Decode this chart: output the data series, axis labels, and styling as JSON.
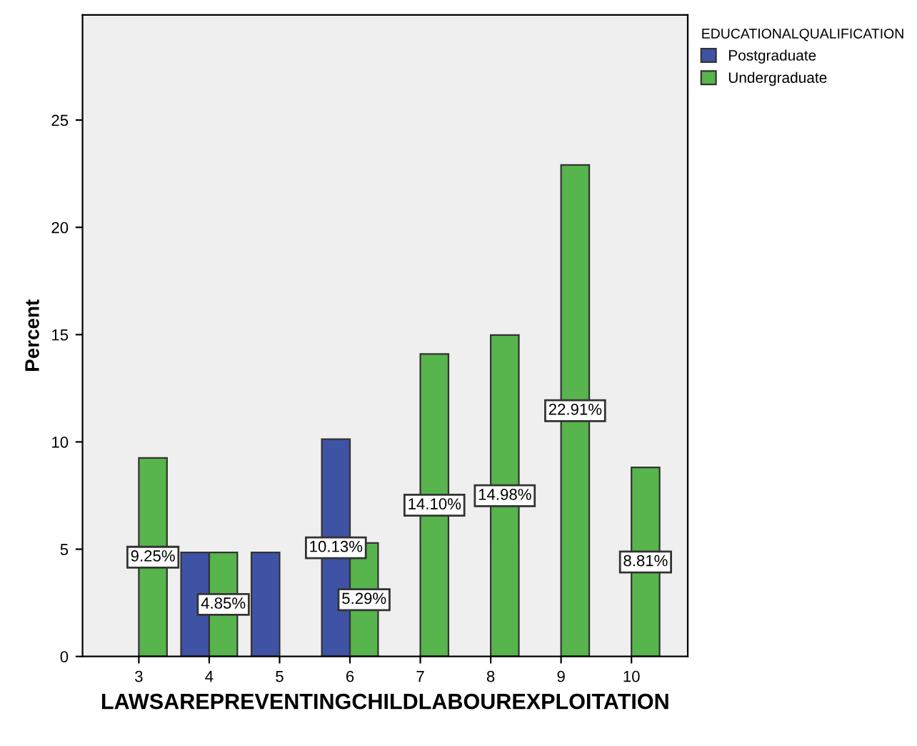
{
  "chart_data": {
    "type": "bar",
    "xlabel": "LAWSAREPREVENTINGCHILDLABOUREXPLOITATION",
    "ylabel": "Percent",
    "legend_title": "EDUCATIONALQUALIFICATION",
    "categories": [
      "3",
      "4",
      "5",
      "6",
      "7",
      "8",
      "9",
      "10"
    ],
    "series": [
      {
        "name": "Postgraduate",
        "color": "#3e53a4",
        "values": [
          null,
          4.85,
          4.85,
          10.13,
          null,
          null,
          null,
          null
        ],
        "value_labels": [
          null,
          null,
          null,
          "10.13%",
          null,
          null,
          null,
          null
        ]
      },
      {
        "name": "Undergraduate",
        "color": "#58b44c",
        "values": [
          9.25,
          4.85,
          null,
          5.29,
          14.1,
          14.98,
          22.91,
          8.81
        ],
        "value_labels": [
          "9.25%",
          "4.85%",
          null,
          "5.29%",
          "14.10%",
          "14.98%",
          "22.91%",
          "8.81%"
        ]
      }
    ],
    "ylim": [
      0,
      29.9
    ],
    "yticks": [
      0,
      5,
      10,
      15,
      20,
      25
    ],
    "grid": false,
    "legend": "top right"
  }
}
